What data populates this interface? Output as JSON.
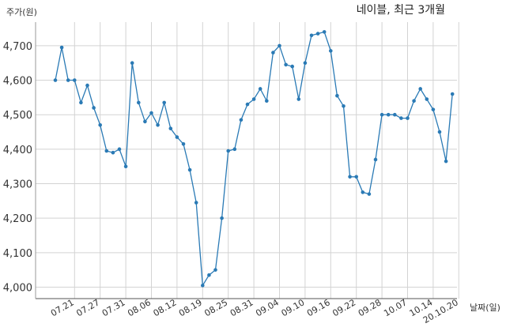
{
  "chart_data": {
    "type": "line",
    "title": "네이블, 최근 3개월",
    "ylabel": "주가(원)",
    "xlabel": "날짜(일)",
    "ylim": [
      3950,
      4780
    ],
    "yticks": [
      4000,
      4100,
      4200,
      4300,
      4400,
      4500,
      4600,
      4700
    ],
    "ytick_labels": [
      "4,000",
      "4,100",
      "4,200",
      "4,300",
      "4,400",
      "4,500",
      "4,600",
      "4,700"
    ],
    "xtick_labels": [
      "07.21",
      "07.27",
      "07.31",
      "08.06",
      "08.12",
      "08.19",
      "08.25",
      "08.31",
      "09.04",
      "09.10",
      "09.16",
      "09.22",
      "09.28",
      "10.07",
      "10.14",
      "20.10.20"
    ],
    "xtick_index": [
      3,
      7,
      11,
      15,
      19,
      23,
      27,
      31,
      35,
      39,
      43,
      47,
      51,
      55,
      59,
      63
    ],
    "grid": true,
    "legend": "none",
    "line_color": "#2a7ab5",
    "series": [
      {
        "values": [
          4600,
          4695,
          4600,
          4600,
          4535,
          4585,
          4520,
          4470,
          4395,
          4390,
          4400,
          4350,
          4650,
          4535,
          4480,
          4505,
          4470,
          4535,
          4460,
          4435,
          4415,
          4340,
          4245,
          4005,
          4035,
          4050,
          4200,
          4395,
          4400,
          4485,
          4530,
          4545,
          4575,
          4540,
          4680,
          4700,
          4645,
          4640,
          4545,
          4650,
          4730,
          4735,
          4740,
          4685,
          4555,
          4525,
          4320,
          4320,
          4275,
          4270,
          4370,
          4500,
          4500,
          4500,
          4490,
          4490,
          4540,
          4575,
          4545,
          4515,
          4450,
          4365,
          4560
        ]
      }
    ]
  }
}
